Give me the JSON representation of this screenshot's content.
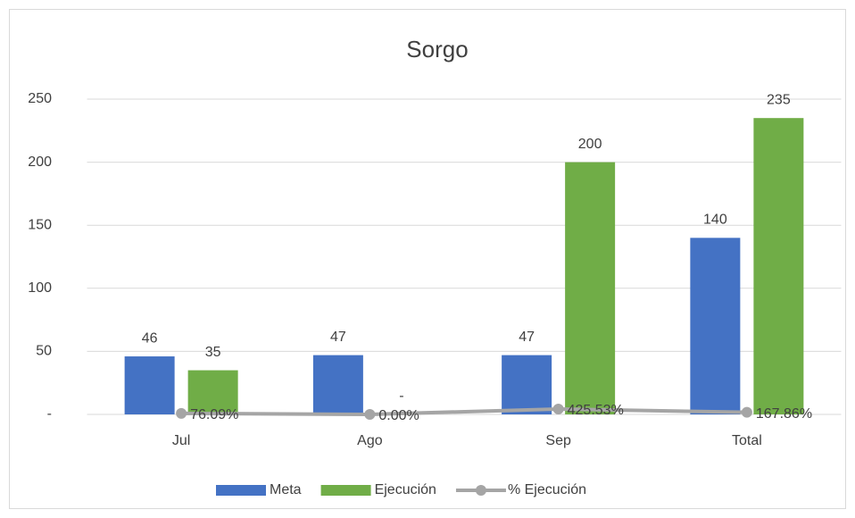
{
  "chart_data": {
    "type": "bar",
    "title": "Sorgo",
    "categories": [
      "Jul",
      "Ago",
      "Sep",
      "Total"
    ],
    "series": [
      {
        "name": "Meta",
        "type": "bar",
        "color": "#4472c4",
        "values": [
          46,
          47,
          47,
          140
        ]
      },
      {
        "name": "Ejecución",
        "type": "bar",
        "color": "#70ad47",
        "values": [
          35,
          0,
          200,
          235
        ],
        "value_labels": [
          "35",
          "-",
          "200",
          "235"
        ]
      },
      {
        "name": "% Ejecución",
        "type": "line",
        "color": "#a5a5a5",
        "values": [
          0.7609,
          0,
          4.2553,
          1.6786
        ],
        "value_labels": [
          "76.09%",
          "0.00%",
          "425.53%",
          "167.86%"
        ]
      }
    ],
    "ylim": [
      0,
      250
    ],
    "yticks": [
      {
        "value": 0,
        "label": "-"
      },
      50,
      100,
      150,
      200,
      250
    ],
    "grid": true,
    "legend": "bottom"
  }
}
